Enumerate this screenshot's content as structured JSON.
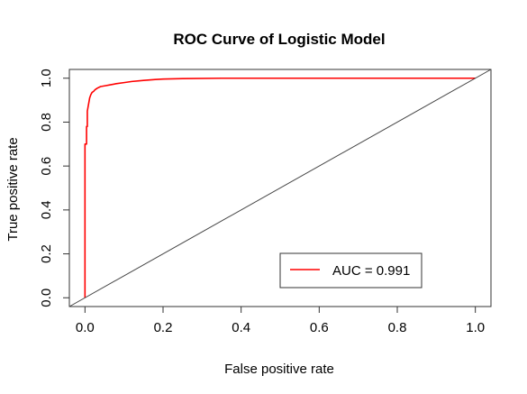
{
  "chart_data": {
    "type": "line",
    "title": "ROC Curve of Logistic Model",
    "xlabel": "False positive rate",
    "ylabel": "True positive rate",
    "xlim": [
      -0.04,
      1.04
    ],
    "ylim": [
      -0.04,
      1.04
    ],
    "x_ticks": [
      0.0,
      0.2,
      0.4,
      0.6,
      0.8,
      1.0
    ],
    "x_tick_labels": [
      "0.0",
      "0.2",
      "0.4",
      "0.6",
      "0.8",
      "1.0"
    ],
    "y_ticks": [
      0.0,
      0.2,
      0.4,
      0.6,
      0.8,
      1.0
    ],
    "y_tick_labels": [
      "0.0",
      "0.2",
      "0.4",
      "0.6",
      "0.8",
      "1.0"
    ],
    "legend_position": "bottom-right",
    "colors": {
      "roc": "#ff0000",
      "diagonal": "#444444",
      "axes": "#333333"
    },
    "series": [
      {
        "name": "ROC",
        "style": "step",
        "color": "#ff0000",
        "x": [
          0.0,
          0.0,
          0.004,
          0.004,
          0.006,
          0.006,
          0.008,
          0.01,
          0.012,
          0.015,
          0.018,
          0.022,
          0.026,
          0.032,
          0.04,
          0.05,
          0.065,
          0.08,
          0.1,
          0.12,
          0.15,
          0.18,
          0.2,
          0.25,
          0.35,
          1.0
        ],
        "y": [
          0.0,
          0.7,
          0.7,
          0.78,
          0.78,
          0.85,
          0.87,
          0.89,
          0.91,
          0.925,
          0.935,
          0.94,
          0.948,
          0.955,
          0.962,
          0.965,
          0.97,
          0.975,
          0.98,
          0.985,
          0.99,
          0.994,
          0.996,
          0.998,
          1.0,
          1.0
        ]
      },
      {
        "name": "chance",
        "style": "line",
        "color": "#444444",
        "x": [
          -0.04,
          1.04
        ],
        "y": [
          -0.04,
          1.04
        ]
      }
    ],
    "legend": [
      {
        "label": "AUC = 0.991",
        "color": "#ff0000"
      }
    ]
  }
}
